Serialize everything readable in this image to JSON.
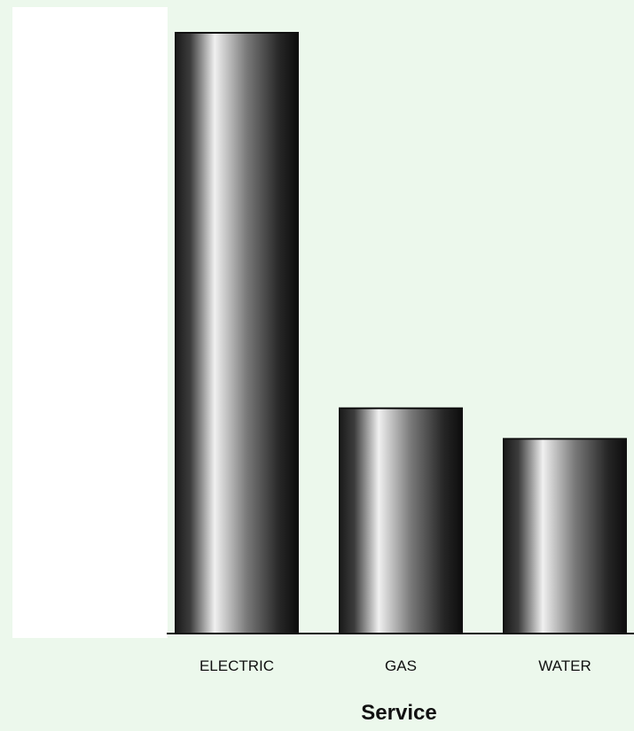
{
  "chart_data": {
    "type": "bar",
    "categories": [
      "ELECTRIC",
      "GAS",
      "WATER"
    ],
    "values": [
      100,
      37.5,
      32.4
    ],
    "title": "",
    "xlabel": "Service",
    "ylabel": "",
    "ylim": [
      0,
      100
    ],
    "grid": false,
    "legend": "none"
  },
  "colors": {
    "page_background": "#ecf8ec",
    "plot_background": "#ffffff",
    "axis": "#111111",
    "bar_edge": "#111111",
    "bar_gradient": [
      "#1a1a1a",
      "#3c3c3c",
      "#f0f0f0",
      "#7a7a7a",
      "#262626",
      "#0d0d0d"
    ]
  }
}
